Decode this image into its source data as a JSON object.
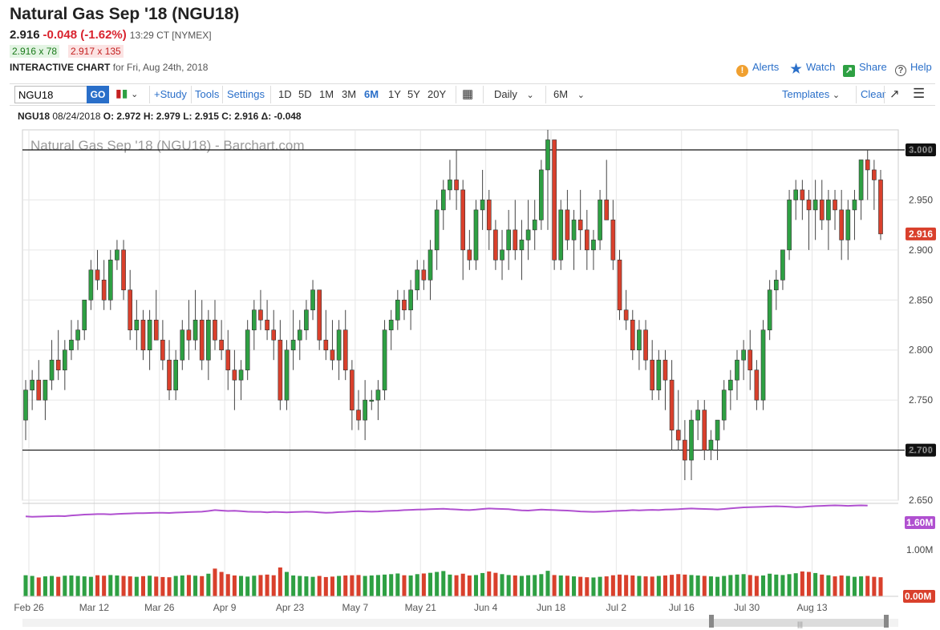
{
  "header": {
    "title": "Natural Gas Sep '18 (NGU18)",
    "last": "2.916",
    "change": "-0.048 (-1.62%)",
    "time": "13:29 CT [NYMEX]",
    "bid": "2.916 x 78",
    "ask": "2.917 x 135",
    "chart_label": "INTERACTIVE CHART",
    "chart_date": "for Fri, Aug 24th, 2018",
    "alerts": "Alerts",
    "watch": "Watch",
    "share": "Share",
    "help": "Help"
  },
  "toolbar": {
    "symbol": "NGU18",
    "go": "GO",
    "study": "+Study",
    "tools": "Tools",
    "settings": "Settings",
    "periods": [
      "1D",
      "5D",
      "1M",
      "3M",
      "6M",
      "1Y",
      "5Y",
      "20Y"
    ],
    "active_period": "6M",
    "interval": "Daily",
    "range": "6M",
    "templates": "Templates",
    "clear": "Clear"
  },
  "ohlc": {
    "symbol": "NGU18",
    "date": "08/24/2018",
    "o": "O: 2.972",
    "h": "H: 2.979",
    "l": "L: 2.915",
    "c": "C: 2.916",
    "d": "Δ: -0.048"
  },
  "colors": {
    "up": "#2ea043",
    "down": "#d9402c",
    "ma": "#b050d0",
    "accent": "#2a6fc9"
  },
  "chart_data": {
    "type": "candlestick",
    "title": "Natural Gas Sep '18 (NGU18) - Barchart.com",
    "price_ticks": [
      "3.000",
      "2.950",
      "2.900",
      "2.850",
      "2.800",
      "2.750",
      "2.700",
      "2.650"
    ],
    "ylim": [
      2.65,
      3.02
    ],
    "horizontal_lines": [
      3.0,
      2.7
    ],
    "line_labels": [
      "3.000",
      "2.700"
    ],
    "last_label": "2.916",
    "last": 2.916,
    "x_labels": [
      "Feb 26",
      "Mar 12",
      "Mar 26",
      "Apr 9",
      "Apr 23",
      "May 7",
      "May 21",
      "Jun 4",
      "Jun 18",
      "Jul 2",
      "Jul 16",
      "Jul 30",
      "Aug 13"
    ],
    "x_label_index": [
      0,
      10,
      20,
      30,
      40,
      50,
      60,
      70,
      80,
      90,
      100,
      110,
      120
    ],
    "ohlc": [
      [
        2.73,
        2.77,
        2.71,
        2.76
      ],
      [
        2.76,
        2.78,
        2.74,
        2.77
      ],
      [
        2.77,
        2.79,
        2.75,
        2.75
      ],
      [
        2.75,
        2.77,
        2.73,
        2.77
      ],
      [
        2.77,
        2.81,
        2.76,
        2.79
      ],
      [
        2.79,
        2.82,
        2.77,
        2.78
      ],
      [
        2.78,
        2.81,
        2.76,
        2.8
      ],
      [
        2.8,
        2.83,
        2.79,
        2.81
      ],
      [
        2.81,
        2.83,
        2.8,
        2.82
      ],
      [
        2.82,
        2.85,
        2.81,
        2.85
      ],
      [
        2.85,
        2.89,
        2.84,
        2.88
      ],
      [
        2.88,
        2.9,
        2.86,
        2.87
      ],
      [
        2.87,
        2.89,
        2.84,
        2.85
      ],
      [
        2.85,
        2.9,
        2.84,
        2.89
      ],
      [
        2.89,
        2.91,
        2.88,
        2.9
      ],
      [
        2.9,
        2.91,
        2.85,
        2.86
      ],
      [
        2.86,
        2.88,
        2.81,
        2.82
      ],
      [
        2.82,
        2.85,
        2.8,
        2.83
      ],
      [
        2.83,
        2.84,
        2.79,
        2.8
      ],
      [
        2.8,
        2.84,
        2.78,
        2.83
      ],
      [
        2.83,
        2.86,
        2.81,
        2.81
      ],
      [
        2.81,
        2.83,
        2.78,
        2.79
      ],
      [
        2.79,
        2.81,
        2.75,
        2.76
      ],
      [
        2.76,
        2.8,
        2.75,
        2.79
      ],
      [
        2.79,
        2.83,
        2.78,
        2.82
      ],
      [
        2.82,
        2.85,
        2.79,
        2.81
      ],
      [
        2.81,
        2.86,
        2.8,
        2.83
      ],
      [
        2.83,
        2.85,
        2.78,
        2.79
      ],
      [
        2.79,
        2.84,
        2.77,
        2.83
      ],
      [
        2.83,
        2.85,
        2.8,
        2.81
      ],
      [
        2.81,
        2.83,
        2.79,
        2.8
      ],
      [
        2.8,
        2.82,
        2.76,
        2.78
      ],
      [
        2.78,
        2.8,
        2.74,
        2.77
      ],
      [
        2.77,
        2.79,
        2.75,
        2.78
      ],
      [
        2.78,
        2.83,
        2.77,
        2.82
      ],
      [
        2.82,
        2.85,
        2.8,
        2.84
      ],
      [
        2.84,
        2.86,
        2.82,
        2.83
      ],
      [
        2.83,
        2.85,
        2.81,
        2.82
      ],
      [
        2.82,
        2.84,
        2.79,
        2.81
      ],
      [
        2.81,
        2.83,
        2.74,
        2.75
      ],
      [
        2.75,
        2.81,
        2.74,
        2.8
      ],
      [
        2.8,
        2.84,
        2.78,
        2.81
      ],
      [
        2.81,
        2.83,
        2.79,
        2.82
      ],
      [
        2.82,
        2.85,
        2.81,
        2.84
      ],
      [
        2.84,
        2.87,
        2.83,
        2.86
      ],
      [
        2.86,
        2.86,
        2.8,
        2.81
      ],
      [
        2.81,
        2.84,
        2.79,
        2.8
      ],
      [
        2.8,
        2.83,
        2.78,
        2.79
      ],
      [
        2.79,
        2.83,
        2.77,
        2.82
      ],
      [
        2.82,
        2.84,
        2.77,
        2.78
      ],
      [
        2.78,
        2.79,
        2.72,
        2.74
      ],
      [
        2.74,
        2.76,
        2.72,
        2.73
      ],
      [
        2.73,
        2.77,
        2.71,
        2.75
      ],
      [
        2.75,
        2.76,
        2.74,
        2.75
      ],
      [
        2.75,
        2.77,
        2.73,
        2.76
      ],
      [
        2.76,
        2.83,
        2.75,
        2.82
      ],
      [
        2.82,
        2.84,
        2.8,
        2.83
      ],
      [
        2.83,
        2.86,
        2.82,
        2.85
      ],
      [
        2.85,
        2.86,
        2.83,
        2.84
      ],
      [
        2.84,
        2.87,
        2.82,
        2.86
      ],
      [
        2.86,
        2.89,
        2.85,
        2.88
      ],
      [
        2.88,
        2.89,
        2.86,
        2.87
      ],
      [
        2.87,
        2.91,
        2.85,
        2.9
      ],
      [
        2.9,
        2.95,
        2.88,
        2.94
      ],
      [
        2.94,
        2.97,
        2.92,
        2.96
      ],
      [
        2.96,
        2.99,
        2.95,
        2.97
      ],
      [
        2.97,
        3.0,
        2.94,
        2.96
      ],
      [
        2.96,
        2.97,
        2.87,
        2.9
      ],
      [
        2.9,
        2.92,
        2.88,
        2.89
      ],
      [
        2.89,
        2.95,
        2.88,
        2.94
      ],
      [
        2.94,
        2.98,
        2.92,
        2.95
      ],
      [
        2.95,
        2.96,
        2.9,
        2.92
      ],
      [
        2.92,
        2.93,
        2.88,
        2.89
      ],
      [
        2.89,
        2.92,
        2.87,
        2.9
      ],
      [
        2.9,
        2.94,
        2.88,
        2.92
      ],
      [
        2.92,
        2.95,
        2.89,
        2.9
      ],
      [
        2.9,
        2.93,
        2.87,
        2.91
      ],
      [
        2.91,
        2.95,
        2.89,
        2.92
      ],
      [
        2.92,
        2.95,
        2.9,
        2.93
      ],
      [
        2.93,
        2.99,
        2.92,
        2.98
      ],
      [
        2.98,
        3.02,
        2.92,
        3.01
      ],
      [
        3.01,
        3.01,
        2.88,
        2.89
      ],
      [
        2.89,
        2.95,
        2.88,
        2.94
      ],
      [
        2.94,
        2.96,
        2.9,
        2.91
      ],
      [
        2.91,
        2.94,
        2.88,
        2.93
      ],
      [
        2.93,
        2.96,
        2.9,
        2.92
      ],
      [
        2.92,
        2.94,
        2.88,
        2.9
      ],
      [
        2.9,
        2.92,
        2.88,
        2.91
      ],
      [
        2.91,
        2.96,
        2.9,
        2.95
      ],
      [
        2.95,
        2.99,
        2.93,
        2.93
      ],
      [
        2.93,
        2.95,
        2.88,
        2.89
      ],
      [
        2.89,
        2.9,
        2.83,
        2.84
      ],
      [
        2.84,
        2.86,
        2.82,
        2.83
      ],
      [
        2.83,
        2.84,
        2.79,
        2.8
      ],
      [
        2.8,
        2.83,
        2.78,
        2.82
      ],
      [
        2.82,
        2.83,
        2.78,
        2.79
      ],
      [
        2.79,
        2.81,
        2.75,
        2.76
      ],
      [
        2.76,
        2.8,
        2.75,
        2.79
      ],
      [
        2.79,
        2.8,
        2.74,
        2.77
      ],
      [
        2.77,
        2.79,
        2.7,
        2.72
      ],
      [
        2.72,
        2.76,
        2.7,
        2.71
      ],
      [
        2.71,
        2.73,
        2.67,
        2.69
      ],
      [
        2.69,
        2.74,
        2.67,
        2.73
      ],
      [
        2.73,
        2.75,
        2.71,
        2.74
      ],
      [
        2.74,
        2.75,
        2.69,
        2.7
      ],
      [
        2.7,
        2.72,
        2.69,
        2.71
      ],
      [
        2.71,
        2.73,
        2.69,
        2.73
      ],
      [
        2.73,
        2.77,
        2.72,
        2.76
      ],
      [
        2.76,
        2.78,
        2.74,
        2.77
      ],
      [
        2.77,
        2.8,
        2.75,
        2.79
      ],
      [
        2.79,
        2.81,
        2.77,
        2.8
      ],
      [
        2.8,
        2.82,
        2.76,
        2.78
      ],
      [
        2.78,
        2.79,
        2.74,
        2.75
      ],
      [
        2.75,
        2.83,
        2.74,
        2.82
      ],
      [
        2.82,
        2.87,
        2.81,
        2.86
      ],
      [
        2.86,
        2.88,
        2.84,
        2.87
      ],
      [
        2.87,
        2.9,
        2.86,
        2.9
      ],
      [
        2.9,
        2.96,
        2.89,
        2.95
      ],
      [
        2.95,
        2.97,
        2.93,
        2.96
      ],
      [
        2.96,
        2.97,
        2.93,
        2.95
      ],
      [
        2.95,
        2.96,
        2.9,
        2.94
      ],
      [
        2.94,
        2.97,
        2.91,
        2.95
      ],
      [
        2.95,
        2.97,
        2.92,
        2.93
      ],
      [
        2.93,
        2.96,
        2.9,
        2.95
      ],
      [
        2.95,
        2.96,
        2.92,
        2.94
      ],
      [
        2.94,
        2.96,
        2.89,
        2.91
      ],
      [
        2.91,
        2.95,
        2.89,
        2.94
      ],
      [
        2.94,
        2.96,
        2.91,
        2.95
      ],
      [
        2.95,
        2.99,
        2.93,
        2.99
      ],
      [
        2.99,
        3.0,
        2.95,
        2.98
      ],
      [
        2.98,
        2.99,
        2.94,
        2.97
      ],
      [
        2.97,
        2.98,
        2.91,
        2.916
      ]
    ],
    "ma_ticks": [
      "1.60M",
      "1.00M",
      "0.00M"
    ],
    "volume_ma": [
      1.42,
      1.4,
      1.41,
      1.42,
      1.43,
      1.44,
      1.43,
      1.46,
      1.48,
      1.5,
      1.51,
      1.52,
      1.52,
      1.51,
      1.53,
      1.54,
      1.55,
      1.56,
      1.56,
      1.57,
      1.58,
      1.58,
      1.57,
      1.59,
      1.6,
      1.61,
      1.62,
      1.63,
      1.66,
      1.7,
      1.68,
      1.66,
      1.67,
      1.65,
      1.63,
      1.62,
      1.62,
      1.6,
      1.62,
      1.61,
      1.6,
      1.61,
      1.62,
      1.63,
      1.62,
      1.6,
      1.58,
      1.59,
      1.61,
      1.62,
      1.64,
      1.65,
      1.64,
      1.63,
      1.64,
      1.66,
      1.67,
      1.68,
      1.7,
      1.71,
      1.72,
      1.73,
      1.74,
      1.75,
      1.76,
      1.74,
      1.73,
      1.71,
      1.7,
      1.72,
      1.75,
      1.77,
      1.76,
      1.75,
      1.74,
      1.71,
      1.69,
      1.68,
      1.7,
      1.72,
      1.71,
      1.7,
      1.69,
      1.68,
      1.66,
      1.64,
      1.63,
      1.62,
      1.63,
      1.64,
      1.66,
      1.67,
      1.68,
      1.7,
      1.69,
      1.7,
      1.71,
      1.7,
      1.72,
      1.73,
      1.74,
      1.76,
      1.77,
      1.76,
      1.75,
      1.74,
      1.73,
      1.75,
      1.78,
      1.8,
      1.82,
      1.83,
      1.84,
      1.85,
      1.86,
      1.87,
      1.86,
      1.85,
      1.83,
      1.84,
      1.86,
      1.88,
      1.89,
      1.9,
      1.91,
      1.9,
      1.89,
      1.9,
      1.91,
      1.9
    ],
    "volume_ma_max": 2.0,
    "volume": [
      0.95,
      0.92,
      0.85,
      0.9,
      0.92,
      0.88,
      0.93,
      0.94,
      0.92,
      0.9,
      0.88,
      0.95,
      0.93,
      0.96,
      0.94,
      0.92,
      0.9,
      0.88,
      0.91,
      0.93,
      0.89,
      0.87,
      0.86,
      0.92,
      0.94,
      0.96,
      0.93,
      0.91,
      1.02,
      1.25,
      1.1,
      1.0,
      0.94,
      0.92,
      0.89,
      0.93,
      0.96,
      0.98,
      0.95,
      1.3,
      1.1,
      0.94,
      0.92,
      0.9,
      0.88,
      0.92,
      0.87,
      0.89,
      0.92,
      0.94,
      0.95,
      0.96,
      0.92,
      0.94,
      0.96,
      0.98,
      1.0,
      1.03,
      0.95,
      0.94,
      1.0,
      1.03,
      1.06,
      1.1,
      1.14,
      0.98,
      0.95,
      1.02,
      0.94,
      0.96,
      1.05,
      1.12,
      1.06,
      1.0,
      0.96,
      0.94,
      0.92,
      0.95,
      0.96,
      1.0,
      1.15,
      0.96,
      0.94,
      0.93,
      0.9,
      0.88,
      0.86,
      0.85,
      0.88,
      0.9,
      0.95,
      0.98,
      0.96,
      0.94,
      0.92,
      0.9,
      0.89,
      0.92,
      0.94,
      0.97,
      1.0,
      0.98,
      0.96,
      0.94,
      0.92,
      0.9,
      0.88,
      0.92,
      0.96,
      0.98,
      1.0,
      0.96,
      0.92,
      0.94,
      1.02,
      0.98,
      0.96,
      1.0,
      1.04,
      1.12,
      1.1,
      1.05,
      0.98,
      0.95,
      0.9,
      0.94,
      0.92,
      0.88,
      0.9,
      0.92,
      0.88,
      0.86
    ],
    "volume_max": 1.95
  }
}
